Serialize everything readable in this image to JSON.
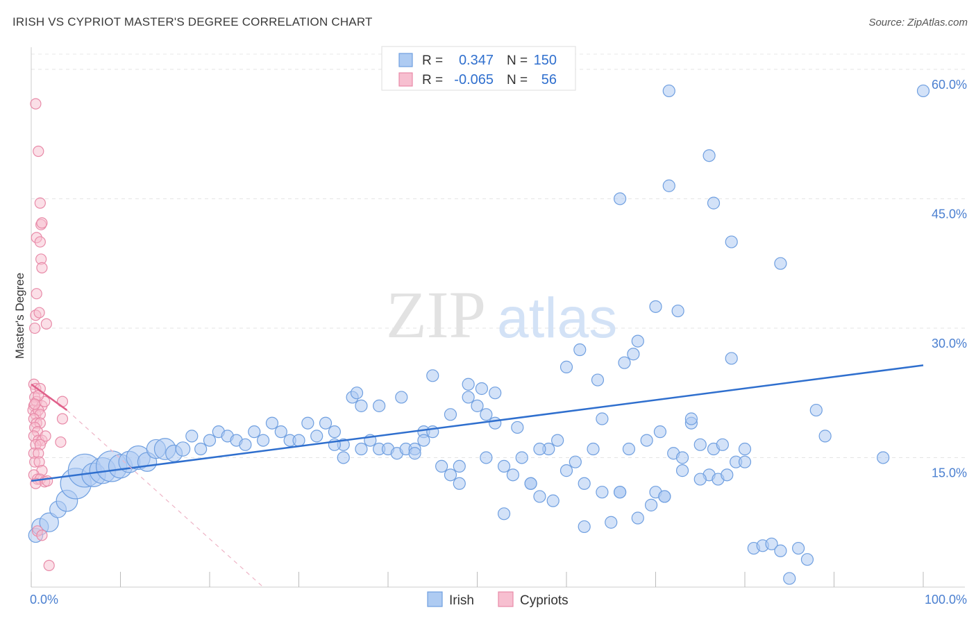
{
  "title": "IRISH VS CYPRIOT MASTER'S DEGREE CORRELATION CHART",
  "source": "Source: ZipAtlas.com",
  "watermark": {
    "zip": "ZIP",
    "atlas": "atlas"
  },
  "chart_data": {
    "type": "scatter",
    "ylabel": "Master's Degree",
    "xlim": [
      0,
      100
    ],
    "ylim": [
      0,
      62
    ],
    "x_ticks": [
      {
        "value": 0,
        "label": "0.0%"
      },
      {
        "value": 100,
        "label": "100.0%"
      }
    ],
    "x_minor_ticks": [
      0,
      10,
      20,
      30,
      40,
      50,
      60,
      70,
      80,
      90,
      100
    ],
    "y_ticks": [
      {
        "value": 15,
        "label": "15.0%"
      },
      {
        "value": 30,
        "label": "30.0%"
      },
      {
        "value": 45,
        "label": "45.0%"
      },
      {
        "value": 60,
        "label": "60.0%"
      }
    ],
    "grid": true,
    "legend_top": [
      {
        "r_label": "R =",
        "r_value": "0.347",
        "n_label": "N =",
        "n_value": "150"
      },
      {
        "r_label": "R =",
        "r_value": "-0.065",
        "n_label": "N =",
        "n_value": "56"
      }
    ],
    "legend_bottom": [
      "Irish",
      "Cypriots"
    ],
    "colors": {
      "irish_fill": "#aecbf2",
      "irish_stroke": "#6f9fe0",
      "irish_line": "#2f6fce",
      "cyp_fill": "#f7bfd0",
      "cyp_stroke": "#e88aa8",
      "cyp_line": "#e0608a",
      "value_text": "#2f6fce",
      "tick_text": "#4a7fd0"
    },
    "series": [
      {
        "name": "Irish",
        "trend": {
          "x0": 0,
          "y0": 12.3,
          "x1": 100,
          "y1": 25.7
        },
        "points": [
          [
            0.5,
            6,
            12
          ],
          [
            1,
            7,
            14
          ],
          [
            2,
            7.5,
            16
          ],
          [
            3,
            9,
            14
          ],
          [
            4,
            10,
            18
          ],
          [
            5,
            12,
            26
          ],
          [
            6,
            13.5,
            28
          ],
          [
            7,
            13,
            20
          ],
          [
            8,
            13.5,
            22
          ],
          [
            9,
            14,
            26
          ],
          [
            10,
            14,
            20
          ],
          [
            11,
            14.5,
            18
          ],
          [
            12,
            15,
            20
          ],
          [
            13,
            14.5,
            16
          ],
          [
            14,
            16,
            16
          ],
          [
            15,
            16,
            18
          ],
          [
            16,
            15.5,
            14
          ],
          [
            17,
            16,
            12
          ],
          [
            18,
            17.5,
            10
          ],
          [
            19,
            16,
            10
          ],
          [
            20,
            17,
            10
          ],
          [
            21,
            18,
            10
          ],
          [
            22,
            17.5,
            10
          ],
          [
            23,
            17,
            10
          ],
          [
            24,
            16.5,
            10
          ],
          [
            25,
            18,
            10
          ],
          [
            26,
            17,
            10
          ],
          [
            27,
            19,
            10
          ],
          [
            28,
            18,
            10
          ],
          [
            29,
            17,
            10
          ],
          [
            30,
            17,
            10
          ],
          [
            31,
            19,
            10
          ],
          [
            32,
            17.5,
            10
          ],
          [
            33,
            19,
            10
          ],
          [
            34,
            18,
            10
          ],
          [
            35,
            16.5,
            10
          ],
          [
            36,
            22,
            10
          ],
          [
            37,
            21,
            10
          ],
          [
            38,
            17,
            10
          ],
          [
            39,
            16,
            10
          ],
          [
            40,
            16,
            10
          ],
          [
            41,
            15.5,
            10
          ],
          [
            42,
            16,
            10
          ],
          [
            43,
            16,
            10
          ],
          [
            44,
            18,
            10
          ],
          [
            45,
            18,
            10
          ],
          [
            46,
            14,
            10
          ],
          [
            47,
            13,
            10
          ],
          [
            48,
            12,
            10
          ],
          [
            49,
            22,
            10
          ],
          [
            50,
            21,
            10
          ],
          [
            51,
            20,
            10
          ],
          [
            52,
            19,
            10
          ],
          [
            53,
            8.5,
            10
          ],
          [
            54,
            13,
            10
          ],
          [
            55,
            15,
            10
          ],
          [
            56,
            12,
            10
          ],
          [
            57,
            10.5,
            10
          ],
          [
            58,
            16,
            10
          ],
          [
            59,
            17,
            10
          ],
          [
            60,
            13.5,
            10
          ],
          [
            61,
            14.5,
            10
          ],
          [
            62,
            7,
            10
          ],
          [
            63,
            16,
            10
          ],
          [
            64,
            19.5,
            10
          ],
          [
            65,
            7.5,
            10
          ],
          [
            66,
            11,
            10
          ],
          [
            67,
            16,
            10
          ],
          [
            68,
            8,
            10
          ],
          [
            69,
            17,
            10
          ],
          [
            70,
            11,
            10
          ],
          [
            71,
            10.5,
            10
          ],
          [
            72,
            15.5,
            10
          ],
          [
            73,
            15,
            10
          ],
          [
            74,
            19,
            10
          ],
          [
            75,
            16.5,
            10
          ],
          [
            76,
            13,
            10
          ],
          [
            77,
            12.5,
            10
          ],
          [
            78,
            13,
            10
          ],
          [
            79,
            14.5,
            10
          ],
          [
            80,
            16,
            10
          ],
          [
            81,
            4.5,
            10
          ],
          [
            82,
            4.8,
            10
          ],
          [
            83,
            5,
            10
          ],
          [
            84,
            4.2,
            10
          ],
          [
            85,
            1,
            10
          ],
          [
            86,
            4.5,
            10
          ],
          [
            87,
            3.2,
            10
          ],
          [
            88,
            20.5,
            10
          ],
          [
            89,
            17.5,
            10
          ],
          [
            36.5,
            22.5,
            10
          ],
          [
            39,
            21,
            10
          ],
          [
            41.5,
            22,
            10
          ],
          [
            45,
            24.5,
            10
          ],
          [
            47,
            20,
            10
          ],
          [
            49,
            23.5,
            10
          ],
          [
            50.5,
            23,
            10
          ],
          [
            52,
            22.5,
            10
          ],
          [
            54.5,
            18.5,
            10
          ],
          [
            57,
            16,
            10
          ],
          [
            60,
            25.5,
            10
          ],
          [
            61.5,
            27.5,
            10
          ],
          [
            63.5,
            24,
            10
          ],
          [
            66.5,
            26,
            10
          ],
          [
            67.5,
            27,
            10
          ],
          [
            68,
            28.5,
            10
          ],
          [
            70.5,
            18,
            10
          ],
          [
            74,
            19.5,
            10
          ],
          [
            76.5,
            16,
            10
          ],
          [
            77.5,
            16.5,
            10
          ],
          [
            66,
            45,
            10
          ],
          [
            71.5,
            46.5,
            10
          ],
          [
            76,
            50,
            10
          ],
          [
            76.5,
            44.5,
            10
          ],
          [
            71.5,
            57.5,
            10
          ],
          [
            100,
            57.5,
            10
          ],
          [
            84,
            37.5,
            10
          ],
          [
            78.5,
            40,
            10
          ],
          [
            70,
            32.5,
            10
          ],
          [
            72.5,
            32,
            10
          ],
          [
            78.5,
            26.5,
            10
          ],
          [
            34,
            16.5,
            10
          ],
          [
            35,
            15,
            10
          ],
          [
            37,
            16,
            10
          ],
          [
            43,
            15.5,
            10
          ],
          [
            44,
            17,
            10
          ],
          [
            48,
            14,
            10
          ],
          [
            51,
            15,
            10
          ],
          [
            53,
            14,
            10
          ],
          [
            56,
            12,
            10
          ],
          [
            58.5,
            10,
            10
          ],
          [
            62,
            12,
            10
          ],
          [
            64,
            11,
            10
          ],
          [
            66,
            11,
            10
          ],
          [
            69.5,
            9.5,
            10
          ],
          [
            71,
            10.5,
            10
          ],
          [
            73,
            13.5,
            10
          ],
          [
            75,
            12.5,
            10
          ],
          [
            80,
            14.5,
            10
          ],
          [
            95.5,
            15,
            10
          ]
        ]
      },
      {
        "name": "Cypriots",
        "trend": {
          "x0": 0,
          "y0": 23.5,
          "x1": 4,
          "y1": 20.5,
          "dash_x1": 26,
          "dash_y1": 0
        },
        "points": [
          [
            0.5,
            56,
            10
          ],
          [
            0.8,
            50.5,
            10
          ],
          [
            1,
            44.5,
            10
          ],
          [
            1.1,
            42,
            10
          ],
          [
            1.2,
            42.2,
            10
          ],
          [
            0.6,
            40.5,
            10
          ],
          [
            1.0,
            40,
            10
          ],
          [
            1.1,
            38,
            10
          ],
          [
            1.2,
            37,
            10
          ],
          [
            0.6,
            34,
            10
          ],
          [
            0.5,
            31.5,
            10
          ],
          [
            0.9,
            31.8,
            10
          ],
          [
            1.7,
            30.5,
            10
          ],
          [
            0.4,
            30,
            10
          ],
          [
            0.3,
            23.5,
            10
          ],
          [
            0.5,
            23,
            10
          ],
          [
            1.0,
            23,
            10
          ],
          [
            0.4,
            22,
            10
          ],
          [
            0.3,
            21,
            10
          ],
          [
            0.6,
            21.5,
            10
          ],
          [
            1.2,
            21,
            10
          ],
          [
            1.5,
            21.5,
            10
          ],
          [
            3.5,
            21.5,
            10
          ],
          [
            0.2,
            20.5,
            10
          ],
          [
            0.5,
            20,
            10
          ],
          [
            0.8,
            20.5,
            10
          ],
          [
            1.0,
            20,
            10
          ],
          [
            0.3,
            19.5,
            10
          ],
          [
            0.6,
            19,
            10
          ],
          [
            1.0,
            19,
            10
          ],
          [
            3.5,
            19.5,
            10
          ],
          [
            0.4,
            18.5,
            10
          ],
          [
            0.7,
            18,
            10
          ],
          [
            0.3,
            17.5,
            10
          ],
          [
            0.8,
            17,
            10
          ],
          [
            1.2,
            17,
            10
          ],
          [
            1.6,
            17.5,
            10
          ],
          [
            0.5,
            16.5,
            10
          ],
          [
            1.0,
            16.5,
            10
          ],
          [
            3.3,
            16.8,
            10
          ],
          [
            0.3,
            15.5,
            10
          ],
          [
            0.8,
            15.5,
            10
          ],
          [
            0.4,
            14.5,
            10
          ],
          [
            0.9,
            14.5,
            10
          ],
          [
            1.2,
            13.5,
            10
          ],
          [
            0.3,
            13,
            10
          ],
          [
            0.7,
            12.5,
            10
          ],
          [
            1.0,
            12.5,
            10
          ],
          [
            1.5,
            12.2,
            10
          ],
          [
            0.5,
            12,
            10
          ],
          [
            0.7,
            6.5,
            10
          ],
          [
            1.2,
            6,
            10
          ],
          [
            2,
            2.5,
            10
          ],
          [
            0.8,
            22.2,
            10
          ],
          [
            0.4,
            21.2,
            10
          ],
          [
            1.8,
            12.3,
            10
          ]
        ]
      }
    ]
  }
}
